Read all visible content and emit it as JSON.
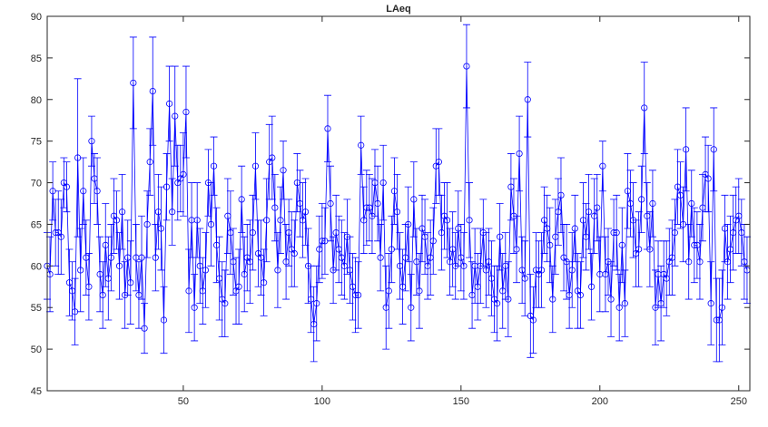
{
  "chart_data": {
    "type": "errorbar",
    "title": "LAeq",
    "color": "#0000ff",
    "xlim": [
      1,
      254
    ],
    "xticks": [
      50,
      100,
      150,
      200,
      250
    ],
    "ylim": [
      45,
      90
    ],
    "yticks": [
      45,
      50,
      55,
      60,
      65,
      70,
      75,
      80,
      85,
      90
    ],
    "values": [
      60,
      59,
      69,
      64,
      64,
      63.5,
      70,
      69.5,
      58,
      57,
      54.5,
      73,
      59.5,
      69,
      61,
      57.5,
      75,
      70.5,
      69,
      59,
      56.5,
      62.5,
      58.5,
      61,
      66,
      65.5,
      60,
      66.5,
      56.5,
      61,
      58,
      82,
      61,
      56.5,
      61,
      52.5,
      65,
      72.5,
      81,
      61,
      66.5,
      64.5,
      53.5,
      69.5,
      79.5,
      66.5,
      78,
      70,
      70.5,
      71,
      78.5,
      57,
      65.5,
      55,
      65.5,
      60,
      57,
      59.5,
      70,
      65,
      72,
      62.5,
      58.5,
      56,
      55.5,
      66,
      64,
      60.5,
      57,
      57.5,
      68,
      59,
      61,
      60.5,
      64,
      72,
      61.5,
      61,
      58,
      65.5,
      72.5,
      73,
      67,
      59.5,
      65.5,
      71.5,
      60.5,
      64,
      62,
      61.5,
      70,
      67.5,
      65.5,
      66.5,
      60,
      56,
      53,
      55.5,
      62,
      63,
      63,
      76.5,
      67.5,
      59.5,
      64,
      62,
      61,
      60,
      63.5,
      59.5,
      57.5,
      56.5,
      56.5,
      74.5,
      65.5,
      67,
      67,
      66,
      70,
      67.5,
      61,
      70,
      55,
      57,
      62,
      69,
      66.5,
      60,
      57.5,
      61,
      65,
      55,
      68,
      60.5,
      57,
      64.5,
      63.5,
      60,
      61,
      63,
      72,
      72.5,
      64,
      66,
      65.5,
      60.5,
      62,
      60,
      64.5,
      61,
      60,
      84,
      65.5,
      56.5,
      60,
      57.5,
      60,
      64,
      59.5,
      60.5,
      58.5,
      56,
      55.5,
      63.5,
      57,
      60,
      56,
      69.5,
      66,
      62,
      73.5,
      59.5,
      58.5,
      80,
      54,
      53.5,
      59.5,
      59,
      59.5,
      65.5,
      64.5,
      62.5,
      56,
      63.5,
      66.5,
      68.5,
      61,
      60.5,
      56.5,
      59.5,
      64.5,
      57,
      56.5,
      65.5,
      63.5,
      66.5,
      57.5,
      66,
      67,
      59,
      72,
      59,
      60.5,
      56,
      64,
      64,
      55,
      62.5,
      55.5,
      69,
      67.5,
      65.5,
      61.5,
      62,
      68,
      79,
      66,
      62,
      67.5,
      55,
      59,
      55.5,
      59,
      58.5,
      60.5,
      61,
      64,
      69.5,
      68.5,
      65,
      74,
      60.5,
      67.5,
      62.5,
      62.5,
      60.5,
      67,
      71,
      70.5,
      55.5,
      74,
      53.5,
      53.5,
      55,
      64.5,
      60.5,
      62,
      64,
      65.5,
      66,
      64,
      60.5,
      59.5
    ],
    "errors": [
      4,
      4.5,
      3.5,
      4,
      5,
      4.5,
      3,
      3,
      4,
      3.5,
      4,
      9.5,
      5,
      4,
      4.5,
      4,
      3,
      3,
      4,
      4.5,
      4,
      5,
      5,
      4,
      4.5,
      3.5,
      4,
      4.5,
      4,
      4.5,
      5,
      5.5,
      4,
      4,
      5,
      3,
      4,
      4,
      6.5,
      4,
      4.5,
      5,
      4,
      4,
      4.5,
      4,
      6,
      4.5,
      4,
      5,
      5.5,
      5,
      4.5,
      4,
      4.5,
      4.5,
      4,
      4.5,
      4,
      5,
      3.5,
      4.5,
      5,
      4.5,
      4,
      4.5,
      5,
      4,
      4,
      4.5,
      4,
      4.5,
      4,
      5,
      4.5,
      4,
      4,
      4.5,
      4,
      5,
      4.5,
      5,
      4,
      4.5,
      4,
      3.5,
      4.5,
      4,
      4.5,
      4,
      3.5,
      4,
      4.5,
      4,
      4.5,
      4,
      4.5,
      4.5,
      4,
      4.5,
      4,
      4,
      4.5,
      4,
      4.5,
      4,
      4.5,
      4,
      4.5,
      4,
      4,
      4.5,
      4,
      3.5,
      4,
      4.5,
      4,
      4.5,
      4,
      4.5,
      4,
      4.5,
      5,
      4.5,
      4,
      4,
      4.5,
      4,
      4.5,
      4,
      4.5,
      4,
      4.5,
      4,
      4.5,
      4,
      4.5,
      4,
      4.5,
      4,
      4.5,
      4,
      4.5,
      4,
      4.5,
      4,
      4.5,
      4,
      4.5,
      4,
      4,
      5,
      4.5,
      4,
      4.5,
      4,
      4.5,
      4,
      4.5,
      4,
      4.5,
      4,
      4.5,
      4,
      4.5,
      4,
      4.5,
      4,
      4.5,
      4,
      4.5,
      4,
      4.5,
      4.5,
      5,
      4,
      4.5,
      4,
      4.5,
      4,
      4,
      4.5,
      4,
      4.5,
      4,
      4.5,
      4,
      4.5,
      4,
      4.5,
      4,
      4.5,
      4,
      4.5,
      4,
      4.5,
      4,
      4.5,
      4,
      4.5,
      3,
      4.5,
      4,
      4.5,
      4,
      4.5,
      4,
      4.5,
      4,
      4.5,
      4,
      4.5,
      4,
      4.5,
      4,
      5.5,
      4,
      4.5,
      4,
      4.5,
      4,
      4.5,
      4,
      4.5,
      4,
      4.5,
      4,
      4.5,
      4,
      4.5,
      5,
      4.5,
      4,
      4.5,
      4,
      4.5,
      4,
      4.5,
      4,
      5,
      5,
      5,
      5,
      4.5,
      4,
      4.5,
      4,
      4.5,
      4,
      4.5,
      4,
      4.5,
      4
    ]
  }
}
